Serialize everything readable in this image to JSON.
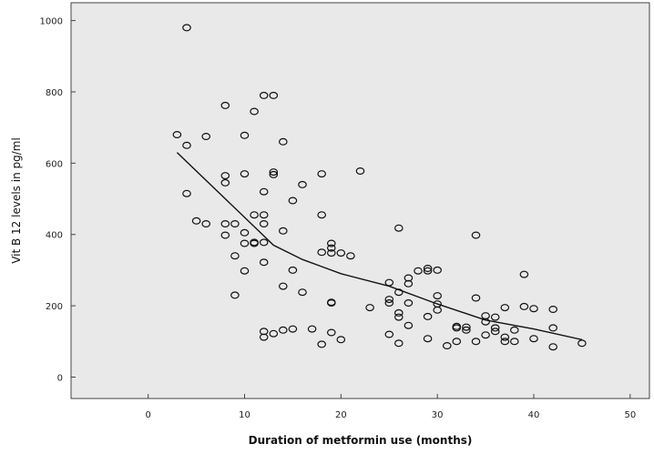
{
  "chart_data": {
    "type": "scatter",
    "title": "",
    "xlabel": "Duration of metformin use (months)",
    "ylabel": "Vit B 12 levels in pg/ml",
    "xlim": [
      -8,
      52
    ],
    "ylim": [
      -60,
      1050
    ],
    "xticks": [
      0,
      10,
      20,
      30,
      40,
      50
    ],
    "yticks": [
      0,
      200,
      400,
      600,
      800,
      1000
    ],
    "grid": false,
    "plot_background": "#e9e9e9",
    "marker_color": "#111111",
    "points": [
      {
        "x": 4,
        "y": 980
      },
      {
        "x": 3,
        "y": 680
      },
      {
        "x": 4,
        "y": 650
      },
      {
        "x": 4,
        "y": 515
      },
      {
        "x": 6,
        "y": 675
      },
      {
        "x": 5,
        "y": 438
      },
      {
        "x": 6,
        "y": 430
      },
      {
        "x": 8,
        "y": 762
      },
      {
        "x": 8,
        "y": 565
      },
      {
        "x": 8,
        "y": 545
      },
      {
        "x": 8,
        "y": 430
      },
      {
        "x": 8,
        "y": 398
      },
      {
        "x": 9,
        "y": 430
      },
      {
        "x": 9,
        "y": 340
      },
      {
        "x": 9,
        "y": 230
      },
      {
        "x": 10,
        "y": 678
      },
      {
        "x": 10,
        "y": 570
      },
      {
        "x": 10,
        "y": 405
      },
      {
        "x": 10,
        "y": 375
      },
      {
        "x": 10,
        "y": 298
      },
      {
        "x": 11,
        "y": 745
      },
      {
        "x": 11,
        "y": 455
      },
      {
        "x": 11,
        "y": 378
      },
      {
        "x": 11,
        "y": 375
      },
      {
        "x": 12,
        "y": 790
      },
      {
        "x": 12,
        "y": 520
      },
      {
        "x": 12,
        "y": 455
      },
      {
        "x": 12,
        "y": 430
      },
      {
        "x": 12,
        "y": 378
      },
      {
        "x": 12,
        "y": 322
      },
      {
        "x": 12,
        "y": 128
      },
      {
        "x": 12,
        "y": 112
      },
      {
        "x": 13,
        "y": 790
      },
      {
        "x": 13,
        "y": 575
      },
      {
        "x": 13,
        "y": 568
      },
      {
        "x": 13,
        "y": 122
      },
      {
        "x": 14,
        "y": 660
      },
      {
        "x": 14,
        "y": 410
      },
      {
        "x": 14,
        "y": 255
      },
      {
        "x": 14,
        "y": 132
      },
      {
        "x": 15,
        "y": 495
      },
      {
        "x": 15,
        "y": 300
      },
      {
        "x": 15,
        "y": 135
      },
      {
        "x": 16,
        "y": 540
      },
      {
        "x": 16,
        "y": 238
      },
      {
        "x": 17,
        "y": 135
      },
      {
        "x": 18,
        "y": 570
      },
      {
        "x": 18,
        "y": 455
      },
      {
        "x": 18,
        "y": 350
      },
      {
        "x": 18,
        "y": 92
      },
      {
        "x": 19,
        "y": 375
      },
      {
        "x": 19,
        "y": 362
      },
      {
        "x": 19,
        "y": 348
      },
      {
        "x": 19,
        "y": 210
      },
      {
        "x": 19,
        "y": 208
      },
      {
        "x": 19,
        "y": 125
      },
      {
        "x": 20,
        "y": 348
      },
      {
        "x": 20,
        "y": 105
      },
      {
        "x": 21,
        "y": 340
      },
      {
        "x": 22,
        "y": 578
      },
      {
        "x": 23,
        "y": 195
      },
      {
        "x": 25,
        "y": 265
      },
      {
        "x": 25,
        "y": 218
      },
      {
        "x": 25,
        "y": 208
      },
      {
        "x": 25,
        "y": 120
      },
      {
        "x": 26,
        "y": 418
      },
      {
        "x": 26,
        "y": 238
      },
      {
        "x": 26,
        "y": 180
      },
      {
        "x": 26,
        "y": 168
      },
      {
        "x": 26,
        "y": 95
      },
      {
        "x": 27,
        "y": 278
      },
      {
        "x": 27,
        "y": 262
      },
      {
        "x": 27,
        "y": 208
      },
      {
        "x": 27,
        "y": 145
      },
      {
        "x": 28,
        "y": 298
      },
      {
        "x": 29,
        "y": 305
      },
      {
        "x": 29,
        "y": 298
      },
      {
        "x": 29,
        "y": 170
      },
      {
        "x": 29,
        "y": 108
      },
      {
        "x": 30,
        "y": 300
      },
      {
        "x": 30,
        "y": 228
      },
      {
        "x": 30,
        "y": 205
      },
      {
        "x": 30,
        "y": 188
      },
      {
        "x": 31,
        "y": 88
      },
      {
        "x": 32,
        "y": 142
      },
      {
        "x": 32,
        "y": 138
      },
      {
        "x": 32,
        "y": 100
      },
      {
        "x": 33,
        "y": 140
      },
      {
        "x": 33,
        "y": 132
      },
      {
        "x": 34,
        "y": 398
      },
      {
        "x": 34,
        "y": 222
      },
      {
        "x": 34,
        "y": 100
      },
      {
        "x": 35,
        "y": 172
      },
      {
        "x": 35,
        "y": 155
      },
      {
        "x": 35,
        "y": 118
      },
      {
        "x": 36,
        "y": 168
      },
      {
        "x": 36,
        "y": 138
      },
      {
        "x": 36,
        "y": 128
      },
      {
        "x": 37,
        "y": 195
      },
      {
        "x": 37,
        "y": 112
      },
      {
        "x": 37,
        "y": 100
      },
      {
        "x": 38,
        "y": 132
      },
      {
        "x": 38,
        "y": 100
      },
      {
        "x": 39,
        "y": 288
      },
      {
        "x": 39,
        "y": 198
      },
      {
        "x": 40,
        "y": 192
      },
      {
        "x": 40,
        "y": 108
      },
      {
        "x": 42,
        "y": 190
      },
      {
        "x": 42,
        "y": 138
      },
      {
        "x": 42,
        "y": 85
      },
      {
        "x": 45,
        "y": 95
      }
    ],
    "trend_line": [
      {
        "x": 3,
        "y": 630
      },
      {
        "x": 8,
        "y": 500
      },
      {
        "x": 13,
        "y": 370
      },
      {
        "x": 16,
        "y": 330
      },
      {
        "x": 18,
        "y": 310
      },
      {
        "x": 20,
        "y": 290
      },
      {
        "x": 25,
        "y": 255
      },
      {
        "x": 30,
        "y": 205
      },
      {
        "x": 35,
        "y": 160
      },
      {
        "x": 40,
        "y": 135
      },
      {
        "x": 45,
        "y": 105
      }
    ]
  }
}
